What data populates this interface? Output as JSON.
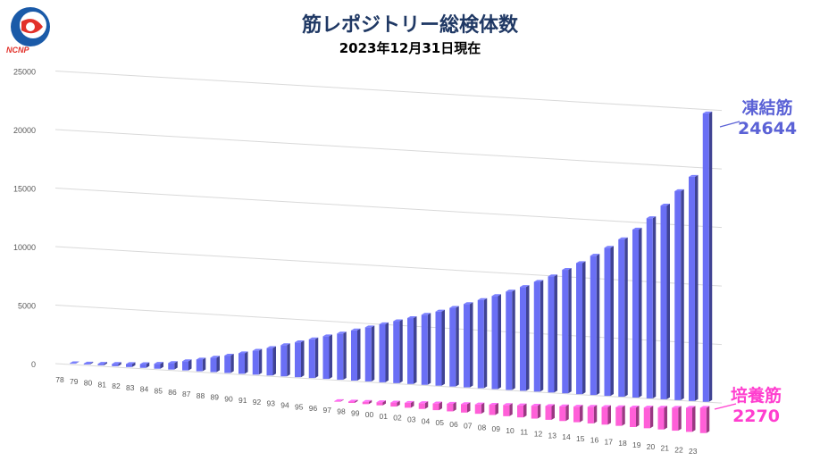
{
  "header": {
    "title": "筋レポジトリー総検体数",
    "subtitle": "2023年12月31日現在",
    "logo_text": "NCNP"
  },
  "colors": {
    "frozen": "#6a6ff5",
    "cultured": "#ff5fd8",
    "title": "#1f3864",
    "frozen_label": "#5b62d6",
    "cultured_label": "#ff3ecf"
  },
  "callouts": {
    "frozen": {
      "name": "凍結筋",
      "value": "24644"
    },
    "cultured": {
      "name": "培養筋",
      "value": "2270"
    }
  },
  "chart_data": {
    "type": "bar",
    "categories": [
      "78",
      "79",
      "80",
      "81",
      "82",
      "83",
      "84",
      "85",
      "86",
      "87",
      "88",
      "89",
      "90",
      "91",
      "92",
      "93",
      "94",
      "95",
      "96",
      "97",
      "98",
      "99",
      "00",
      "01",
      "02",
      "03",
      "04",
      "05",
      "06",
      "07",
      "08",
      "09",
      "10",
      "11",
      "12",
      "13",
      "14",
      "15",
      "16",
      "17",
      "18",
      "19",
      "20",
      "21",
      "22",
      "23"
    ],
    "y_ticks": [
      "0",
      "5000",
      "10000",
      "15000",
      "20000",
      "25000"
    ],
    "ylim": [
      0,
      25000
    ],
    "series": [
      {
        "name": "凍結筋",
        "values": [
          30,
          70,
          130,
          190,
          250,
          320,
          420,
          560,
          780,
          1000,
          1230,
          1480,
          1750,
          2040,
          2340,
          2660,
          2980,
          3310,
          3640,
          3950,
          4290,
          4620,
          4960,
          5290,
          5630,
          5980,
          6330,
          6720,
          7120,
          7530,
          7950,
          8400,
          8870,
          9380,
          9920,
          10550,
          11200,
          11900,
          12650,
          13450,
          14350,
          15400,
          16550,
          17850,
          19150,
          24644
        ]
      },
      {
        "name": "培養筋",
        "values": [
          0,
          0,
          0,
          0,
          0,
          0,
          0,
          0,
          0,
          0,
          0,
          0,
          0,
          0,
          0,
          0,
          0,
          0,
          0,
          50,
          120,
          200,
          280,
          360,
          440,
          520,
          600,
          680,
          760,
          840,
          920,
          1000,
          1080,
          1160,
          1240,
          1320,
          1400,
          1490,
          1580,
          1670,
          1760,
          1860,
          1960,
          2060,
          2160,
          2270
        ]
      }
    ]
  }
}
